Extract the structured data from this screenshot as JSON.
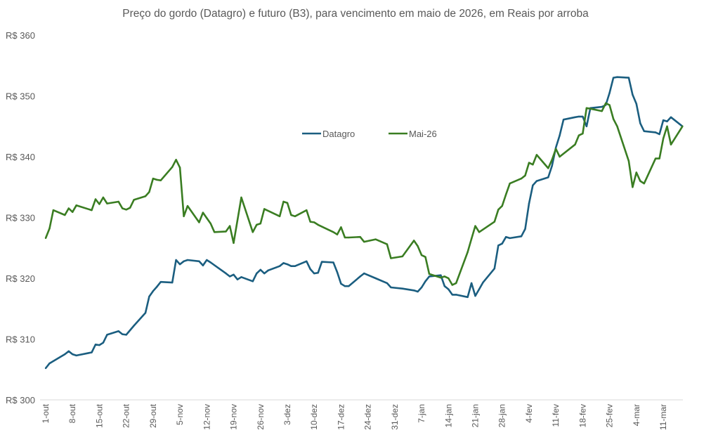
{
  "chart_data": {
    "type": "line",
    "title": "Preço do gordo (Datagro) e futuro (B3), para vencimento em maio de 2026, em Reais por arroba",
    "xlabel": "",
    "ylabel": "",
    "ylim": [
      300,
      360
    ],
    "y_ticks": [
      "R$ 300",
      "R$ 310",
      "R$ 320",
      "R$ 330",
      "R$ 340",
      "R$ 350",
      "R$ 360"
    ],
    "x_ticks": [
      "1-out",
      "8-out",
      "15-out",
      "22-out",
      "29-out",
      "5-nov",
      "12-nov",
      "19-nov",
      "26-nov",
      "3-dez",
      "10-dez",
      "17-dez",
      "24-dez",
      "31-dez",
      "7-jan",
      "14-jan",
      "21-jan",
      "28-jan",
      "4-fev",
      "11-fev",
      "18-fev",
      "25-fev",
      "4-mar",
      "11-mar"
    ],
    "grid": false,
    "legend_position": "top-center",
    "series": [
      {
        "name": "Datagro",
        "color": "#1b5e80",
        "points": [
          [
            "1-out",
            305.2
          ],
          [
            "2-out",
            306.0
          ],
          [
            "6-out",
            307.5
          ],
          [
            "7-out",
            308.0
          ],
          [
            "8-out",
            307.5
          ],
          [
            "9-out",
            307.3
          ],
          [
            "13-out",
            307.8
          ],
          [
            "14-out",
            309.1
          ],
          [
            "15-out",
            309.0
          ],
          [
            "16-out",
            309.4
          ],
          [
            "17-out",
            310.7
          ],
          [
            "20-out",
            311.3
          ],
          [
            "21-out",
            310.8
          ],
          [
            "22-out",
            310.7
          ],
          [
            "24-out",
            312.2
          ],
          [
            "27-out",
            314.3
          ],
          [
            "28-out",
            317.0
          ],
          [
            "29-out",
            317.9
          ],
          [
            "30-out",
            318.6
          ],
          [
            "31-out",
            319.4
          ],
          [
            "3-nov",
            319.3
          ],
          [
            "4-nov",
            323.0
          ],
          [
            "5-nov",
            322.3
          ],
          [
            "6-nov",
            322.8
          ],
          [
            "7-nov",
            323.0
          ],
          [
            "10-nov",
            322.8
          ],
          [
            "11-nov",
            322.1
          ],
          [
            "12-nov",
            323.0
          ],
          [
            "13-nov",
            322.6
          ],
          [
            "17-nov",
            320.8
          ],
          [
            "18-nov",
            320.3
          ],
          [
            "19-nov",
            320.6
          ],
          [
            "20-nov",
            319.8
          ],
          [
            "21-nov",
            320.2
          ],
          [
            "24-nov",
            319.5
          ],
          [
            "25-nov",
            320.8
          ],
          [
            "26-nov",
            321.4
          ],
          [
            "27-nov",
            320.8
          ],
          [
            "28-nov",
            321.3
          ],
          [
            "1-dez",
            322.0
          ],
          [
            "2-dez",
            322.5
          ],
          [
            "3-dez",
            322.3
          ],
          [
            "4-dez",
            322.0
          ],
          [
            "5-dez",
            322.0
          ],
          [
            "8-dez",
            322.8
          ],
          [
            "9-dez",
            321.5
          ],
          [
            "10-dez",
            320.8
          ],
          [
            "11-dez",
            320.9
          ],
          [
            "12-dez",
            322.7
          ],
          [
            "15-dez",
            322.6
          ],
          [
            "16-dez",
            321.0
          ],
          [
            "17-dez",
            319.1
          ],
          [
            "18-dez",
            318.7
          ],
          [
            "19-dez",
            318.7
          ],
          [
            "22-dez",
            320.3
          ],
          [
            "23-dez",
            320.8
          ],
          [
            "26-dez",
            320.0
          ],
          [
            "29-dez",
            319.2
          ],
          [
            "30-dez",
            318.5
          ],
          [
            "2-jan",
            318.3
          ],
          [
            "5-jan",
            318.0
          ],
          [
            "6-jan",
            317.8
          ],
          [
            "7-jan",
            318.5
          ],
          [
            "8-jan",
            319.5
          ],
          [
            "9-jan",
            320.3
          ],
          [
            "12-jan",
            320.5
          ],
          [
            "13-jan",
            318.7
          ],
          [
            "14-jan",
            318.2
          ],
          [
            "15-jan",
            317.3
          ],
          [
            "16-jan",
            317.3
          ],
          [
            "19-jan",
            316.9
          ],
          [
            "20-jan",
            319.2
          ],
          [
            "21-jan",
            317.1
          ],
          [
            "22-jan",
            318.2
          ],
          [
            "23-jan",
            319.3
          ],
          [
            "26-jan",
            321.6
          ],
          [
            "27-jan",
            325.4
          ],
          [
            "28-jan",
            325.7
          ],
          [
            "29-jan",
            326.8
          ],
          [
            "30-jan",
            326.6
          ],
          [
            "2-fev",
            326.9
          ],
          [
            "3-fev",
            328.1
          ],
          [
            "4-fev",
            332.3
          ],
          [
            "5-fev",
            335.3
          ],
          [
            "6-fev",
            336.0
          ],
          [
            "9-fev",
            336.6
          ],
          [
            "10-fev",
            338.5
          ],
          [
            "11-fev",
            341.5
          ],
          [
            "12-fev",
            343.5
          ],
          [
            "13-fev",
            346.1
          ],
          [
            "16-fev",
            346.5
          ],
          [
            "17-fev",
            346.6
          ],
          [
            "18-fev",
            346.6
          ],
          [
            "19-fev",
            345.0
          ],
          [
            "20-fev",
            348.0
          ],
          [
            "23-fev",
            348.2
          ],
          [
            "24-fev",
            348.5
          ],
          [
            "25-fev",
            350.5
          ],
          [
            "26-fev",
            353.0
          ],
          [
            "27-fev",
            353.1
          ],
          [
            "2-mar",
            353.0
          ],
          [
            "3-mar",
            350.2
          ],
          [
            "4-mar",
            348.7
          ],
          [
            "5-mar",
            345.5
          ],
          [
            "6-mar",
            344.2
          ],
          [
            "9-mar",
            344.0
          ],
          [
            "10-mar",
            343.7
          ],
          [
            "11-mar",
            346.0
          ],
          [
            "12-mar",
            345.8
          ],
          [
            "13-mar",
            346.5
          ],
          [
            "16-mar",
            345.0
          ]
        ]
      },
      {
        "name": "Mai-26",
        "color": "#3a7d22",
        "points": [
          [
            "1-out",
            326.6
          ],
          [
            "2-out",
            328.2
          ],
          [
            "3-out",
            331.2
          ],
          [
            "6-out",
            330.4
          ],
          [
            "7-out",
            331.5
          ],
          [
            "8-out",
            330.9
          ],
          [
            "9-out",
            332.0
          ],
          [
            "13-out",
            331.2
          ],
          [
            "14-out",
            333.0
          ],
          [
            "15-out",
            332.2
          ],
          [
            "16-out",
            333.3
          ],
          [
            "17-out",
            332.3
          ],
          [
            "20-out",
            332.6
          ],
          [
            "21-out",
            331.5
          ],
          [
            "22-out",
            331.3
          ],
          [
            "23-out",
            331.6
          ],
          [
            "24-out",
            332.9
          ],
          [
            "27-out",
            333.5
          ],
          [
            "28-out",
            334.2
          ],
          [
            "29-out",
            336.4
          ],
          [
            "30-out",
            336.2
          ],
          [
            "31-out",
            336.1
          ],
          [
            "3-nov",
            338.3
          ],
          [
            "4-nov",
            339.5
          ],
          [
            "5-nov",
            338.2
          ],
          [
            "6-nov",
            330.2
          ],
          [
            "7-nov",
            331.9
          ],
          [
            "10-nov",
            329.2
          ],
          [
            "11-nov",
            330.8
          ],
          [
            "12-nov",
            329.9
          ],
          [
            "13-nov",
            329.0
          ],
          [
            "14-nov",
            327.6
          ],
          [
            "17-nov",
            327.7
          ],
          [
            "18-nov",
            328.6
          ],
          [
            "19-nov",
            325.8
          ],
          [
            "21-nov",
            333.3
          ],
          [
            "24-nov",
            327.6
          ],
          [
            "25-nov",
            328.8
          ],
          [
            "26-nov",
            329.0
          ],
          [
            "27-nov",
            331.4
          ],
          [
            "1-dez",
            330.2
          ],
          [
            "2-dez",
            332.6
          ],
          [
            "3-dez",
            332.4
          ],
          [
            "4-dez",
            330.4
          ],
          [
            "5-dez",
            330.2
          ],
          [
            "8-dez",
            331.2
          ],
          [
            "9-dez",
            329.3
          ],
          [
            "10-dez",
            329.2
          ],
          [
            "11-dez",
            328.8
          ],
          [
            "15-dez",
            327.6
          ],
          [
            "16-dez",
            327.2
          ],
          [
            "17-dez",
            328.4
          ],
          [
            "18-dez",
            326.7
          ],
          [
            "19-dez",
            326.7
          ],
          [
            "22-dez",
            326.8
          ],
          [
            "23-dez",
            326.0
          ],
          [
            "26-dez",
            326.4
          ],
          [
            "29-dez",
            325.6
          ],
          [
            "30-dez",
            323.3
          ],
          [
            "2-jan",
            323.6
          ],
          [
            "5-jan",
            326.2
          ],
          [
            "6-jan",
            325.3
          ],
          [
            "7-jan",
            323.8
          ],
          [
            "8-jan",
            323.5
          ],
          [
            "9-jan",
            320.7
          ],
          [
            "12-jan",
            320.1
          ],
          [
            "13-jan",
            320.3
          ],
          [
            "14-jan",
            320.0
          ],
          [
            "15-jan",
            318.9
          ],
          [
            "16-jan",
            319.2
          ],
          [
            "19-jan",
            324.3
          ],
          [
            "20-jan",
            326.5
          ],
          [
            "21-jan",
            328.6
          ],
          [
            "22-jan",
            327.6
          ],
          [
            "26-jan",
            329.3
          ],
          [
            "27-jan",
            331.3
          ],
          [
            "28-jan",
            331.9
          ],
          [
            "29-jan",
            333.8
          ],
          [
            "30-jan",
            335.6
          ],
          [
            "2-fev",
            336.4
          ],
          [
            "3-fev",
            336.9
          ],
          [
            "4-fev",
            339.0
          ],
          [
            "5-fev",
            338.7
          ],
          [
            "6-fev",
            340.3
          ],
          [
            "9-fev",
            338.1
          ],
          [
            "10-fev",
            339.5
          ],
          [
            "11-fev",
            341.3
          ],
          [
            "12-fev",
            340.0
          ],
          [
            "16-fev",
            342.0
          ],
          [
            "17-fev",
            343.5
          ],
          [
            "18-fev",
            343.8
          ],
          [
            "19-fev",
            348.0
          ],
          [
            "20-fev",
            347.9
          ],
          [
            "23-fev",
            347.5
          ],
          [
            "24-fev",
            348.8
          ],
          [
            "25-fev",
            348.5
          ],
          [
            "26-fev",
            346.2
          ],
          [
            "27-fev",
            345.0
          ],
          [
            "2-mar",
            339.3
          ],
          [
            "3-mar",
            335.0
          ],
          [
            "4-mar",
            337.4
          ],
          [
            "5-mar",
            336.0
          ],
          [
            "6-mar",
            335.6
          ],
          [
            "9-mar",
            339.7
          ],
          [
            "10-mar",
            339.7
          ],
          [
            "11-mar",
            343.0
          ],
          [
            "12-mar",
            345.0
          ],
          [
            "13-mar",
            342.0
          ],
          [
            "16-mar",
            345.0
          ]
        ]
      }
    ]
  }
}
